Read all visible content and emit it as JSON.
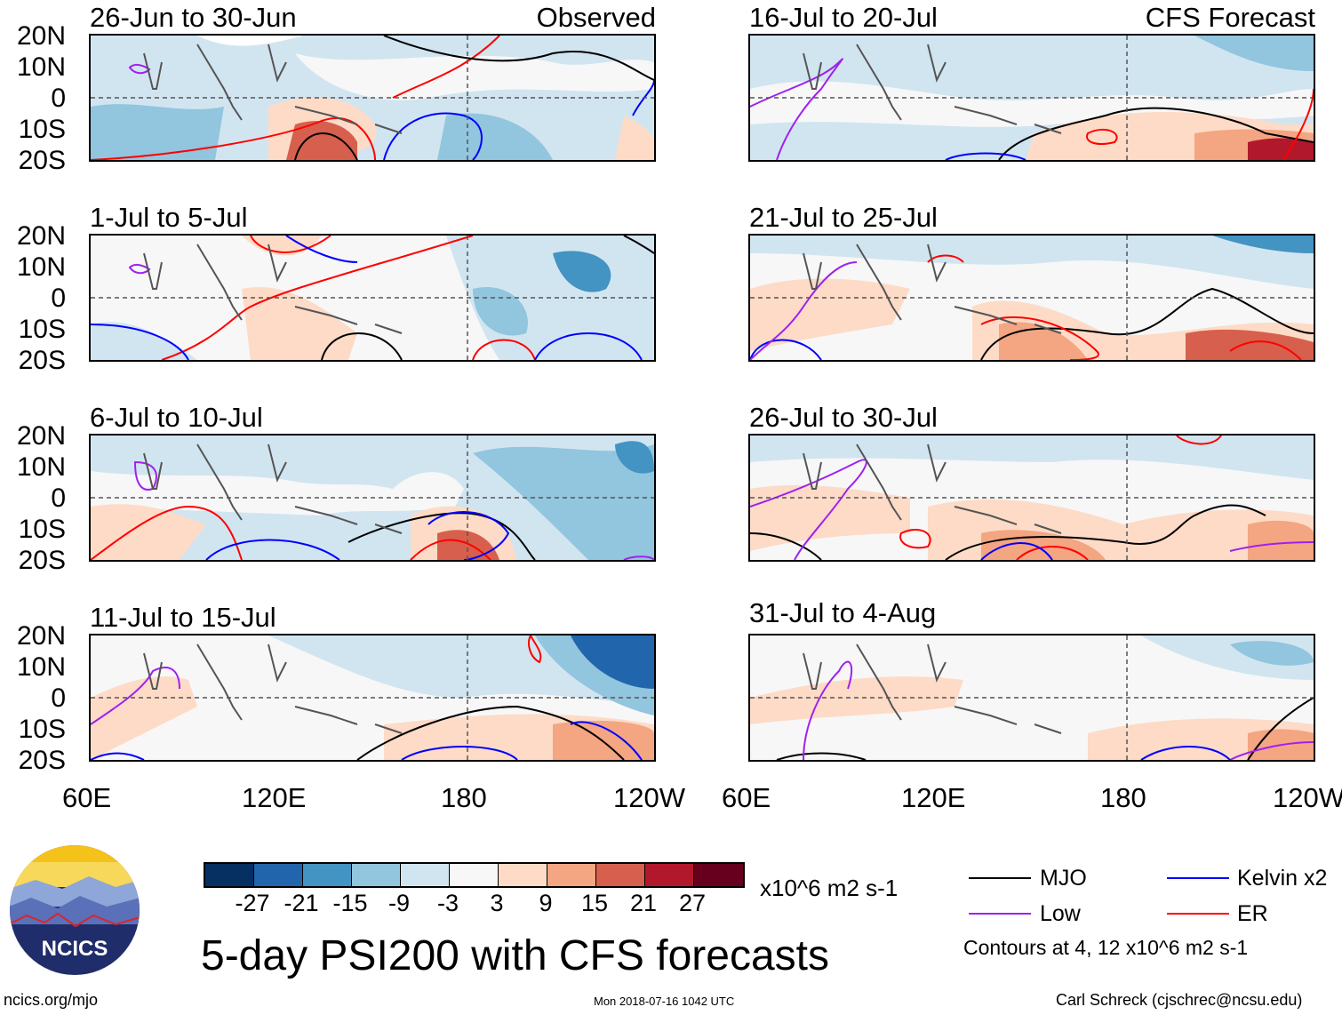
{
  "columns": {
    "left_label": "Observed",
    "right_label": "CFS Forecast"
  },
  "panels": [
    {
      "title": "26-Jun to 30-Jun",
      "type": "observed"
    },
    {
      "title": "1-Jul to 5-Jul",
      "type": "observed"
    },
    {
      "title": "6-Jul to 10-Jul",
      "type": "observed"
    },
    {
      "title": "11-Jul to 15-Jul",
      "type": "observed"
    },
    {
      "title": "16-Jul to 20-Jul",
      "type": "forecast"
    },
    {
      "title": "21-Jul to 25-Jul",
      "type": "forecast"
    },
    {
      "title": "26-Jul to 30-Jul",
      "type": "forecast"
    },
    {
      "title": "31-Jul to 4-Aug",
      "type": "forecast"
    }
  ],
  "lat_labels": [
    "20N",
    "10N",
    "0",
    "10S",
    "20S"
  ],
  "lon_labels": [
    "60E",
    "120E",
    "180",
    "120W"
  ],
  "colorbar": {
    "colors": [
      "#053061",
      "#2166ac",
      "#4393c3",
      "#92c5de",
      "#d1e5f0",
      "#f7f7f7",
      "#fddbc7",
      "#f4a582",
      "#d6604d",
      "#b2182b",
      "#67001f"
    ],
    "ticks": [
      "-27",
      "-21",
      "-15",
      "-9",
      "-3",
      "3",
      "9",
      "15",
      "21",
      "27"
    ],
    "units": "x10^6 m2 s-1"
  },
  "legend": {
    "items": [
      {
        "label": "MJO",
        "color": "#000000"
      },
      {
        "label": "Kelvin x2",
        "color": "#0000ff"
      },
      {
        "label": "Low",
        "color": "#a020f0"
      },
      {
        "label": "ER",
        "color": "#ff0000"
      }
    ],
    "contours_note": "Contours at 4, 12 x10^6 m2 s-1"
  },
  "logo": {
    "text": "NCICS"
  },
  "main_title": "5-day PSI200 with CFS forecasts",
  "footer": {
    "left": "ncics.org/mjo",
    "center": "Mon 2018-07-16 1042 UTC",
    "right": "Carl Schreck (cjschrec@ncsu.edu)"
  }
}
